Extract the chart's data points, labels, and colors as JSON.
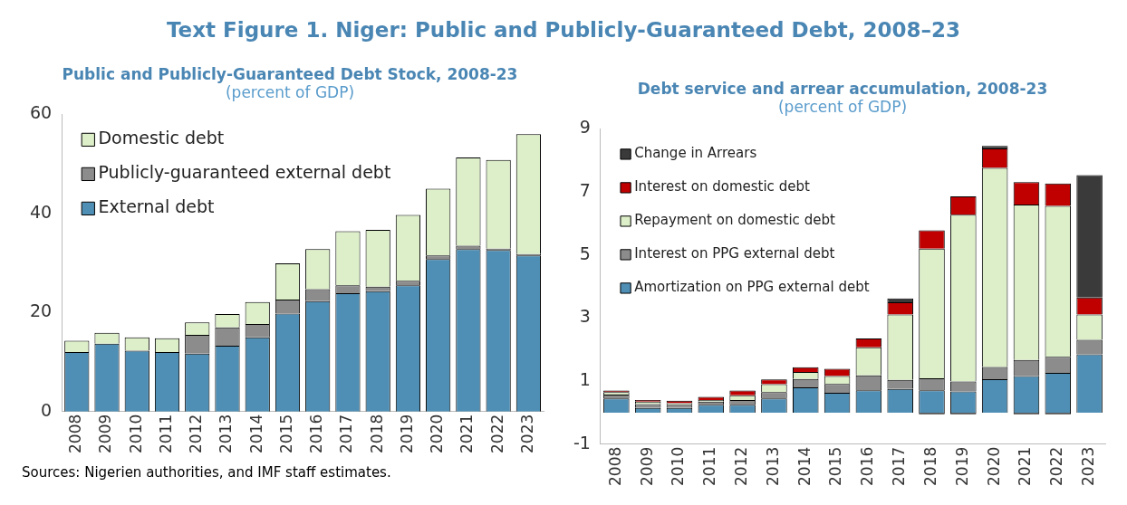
{
  "chart_data": [
    {
      "type": "bar",
      "title": "Public and Publicly-Guaranteed Debt Stock, 2008-23",
      "subtitle": "(percent of GDP)",
      "stacked": true,
      "grid": false,
      "legend": "top left",
      "categories": [
        "2008",
        "2009",
        "2010",
        "2011",
        "2012",
        "2013",
        "2014",
        "2015",
        "2016",
        "2017",
        "2018",
        "2019",
        "2020",
        "2021",
        "2022",
        "2023"
      ],
      "ylim": [
        0,
        60
      ],
      "yticks": [
        0,
        20,
        40,
        60
      ],
      "annotations": [
        "Text Figure 1. Niger: Public and Publicly-Guaranteed Debt, 2008–23",
        "Sources: Nigerien authorities, and IMF staff estimates."
      ],
      "series": [
        {
          "name": "External debt",
          "color": "#4f8fb5",
          "values": [
            12,
            13.7,
            12.3,
            12,
            11.7,
            13.3,
            15,
            19.8,
            22.3,
            23.9,
            24.3,
            25.5,
            30.8,
            32.8,
            32.6,
            31.5
          ]
        },
        {
          "name": "Publicly-guaranteed external debt",
          "color": "#8c8c8c",
          "values": [
            0,
            0,
            0,
            0,
            3.8,
            3.7,
            2.7,
            2.8,
            2.4,
            1.6,
            0.9,
            0.9,
            0.7,
            0.7,
            0.3,
            0.3
          ]
        },
        {
          "name": "Domestic debt",
          "color": "#dcefc8",
          "values": [
            2.3,
            2.2,
            2.7,
            2.8,
            2.5,
            2.7,
            4.4,
            7.3,
            8.1,
            10.9,
            11.5,
            13.3,
            13.5,
            17.8,
            17.9,
            24.2
          ]
        }
      ]
    },
    {
      "type": "bar",
      "title": "Debt service and arrear accumulation, 2008-23",
      "subtitle": "(percent of GDP)",
      "stacked": true,
      "grid": false,
      "legend": "top left",
      "categories": [
        "2008",
        "2009",
        "2010",
        "2011",
        "2012",
        "2013",
        "2014",
        "2015",
        "2016",
        "2017",
        "2018",
        "2019",
        "2020",
        "2021",
        "2022",
        "2023"
      ],
      "ylim": [
        -1,
        9
      ],
      "yticks": [
        -1,
        1,
        3,
        5,
        7,
        9
      ],
      "series": [
        {
          "name": "Amortization on PPG external debt",
          "color": "#4f8fb5",
          "values": [
            0.45,
            0.15,
            0.15,
            0.25,
            0.25,
            0.45,
            0.8,
            0.63,
            0.71,
            0.75,
            0.71,
            0.67,
            1.06,
            1.16,
            1.26,
            1.85
          ]
        },
        {
          "name": "Interest on PPG external debt",
          "color": "#8c8c8c",
          "values": [
            0.12,
            0.12,
            0.1,
            0.1,
            0.15,
            0.2,
            0.27,
            0.28,
            0.47,
            0.29,
            0.38,
            0.32,
            0.39,
            0.51,
            0.51,
            0.46
          ]
        },
        {
          "name": "Repayment on domestic debt",
          "color": "#dcefc8",
          "values": [
            0.08,
            0.08,
            0.05,
            0.05,
            0.15,
            0.25,
            0.22,
            0.25,
            0.89,
            2.07,
            4.11,
            5.29,
            6.31,
            4.93,
            4.79,
            0.8
          ]
        },
        {
          "name": "Interest on domestic debt",
          "color": "#c00000",
          "values": [
            0.05,
            0.05,
            0.08,
            0.1,
            0.15,
            0.15,
            0.15,
            0.23,
            0.28,
            0.39,
            0.58,
            0.58,
            0.62,
            0.71,
            0.71,
            0.54
          ]
        },
        {
          "name": "Change in Arrears",
          "color": "#3a3a3a",
          "values": [
            0,
            0,
            0,
            0,
            0,
            0,
            0,
            0,
            0,
            0.12,
            -0.05,
            -0.05,
            0.08,
            -0.05,
            -0.05,
            3.88
          ]
        }
      ]
    }
  ]
}
